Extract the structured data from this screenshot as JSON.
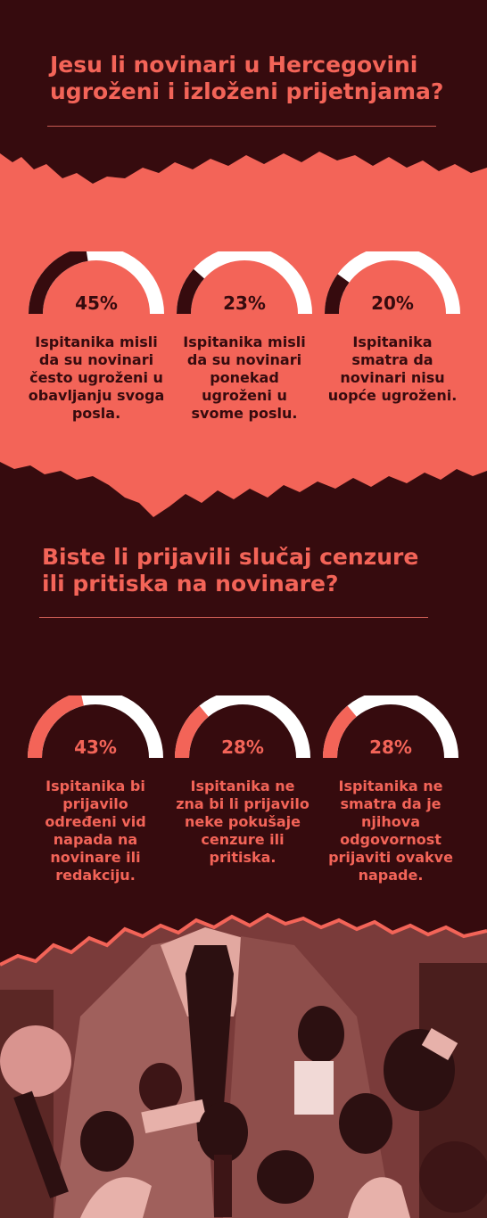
{
  "colors": {
    "background": "#360b0e",
    "accent": "#f36458",
    "ring_track": "#ffffff"
  },
  "section1": {
    "title_line1": "Jesu li novinari u Hercegovini",
    "title_line2": "ugroženi i izloženi prijetnjama?",
    "stats": [
      {
        "percent": "45%",
        "value": 45,
        "desc": [
          "Ispitanika misli",
          "da su novinari",
          "često ugroženi u",
          "obavljanju svoga",
          "posla."
        ]
      },
      {
        "percent": "23%",
        "value": 23,
        "desc": [
          "Ispitanika misli",
          "da su novinari",
          "ponekad",
          "ugroženi u",
          "svome poslu."
        ]
      },
      {
        "percent": "20%",
        "value": 20,
        "desc": [
          "Ispitanika",
          "smatra da",
          "novinari nisu",
          "uopće ugroženi."
        ]
      }
    ]
  },
  "section2": {
    "title_line1": "Biste li prijavili slučaj cenzure",
    "title_line2": "ili pritiska na novinare?",
    "stats": [
      {
        "percent": "43%",
        "value": 43,
        "desc": [
          "Ispitanika bi",
          "prijavilo",
          "određeni vid",
          "napada na",
          "novinare ili",
          "redakciju."
        ]
      },
      {
        "percent": "28%",
        "value": 28,
        "desc": [
          "Ispitanika ne",
          "zna bi li prijavilo",
          "neke pokušaje",
          "cenzure ili",
          "pritiska."
        ]
      },
      {
        "percent": "28%",
        "value": 28,
        "desc": [
          "Ispitanika ne",
          "smatra da je",
          "njihova",
          "odgovornost",
          "prijaviti ovakve",
          "napade."
        ]
      }
    ]
  },
  "chart_data": [
    {
      "type": "pie",
      "title": "Jesu li novinari u Hercegovini ugroženi i izloženi prijetnjama?",
      "categories": [
        "Ispitanika misli da su novinari često ugroženi u obavljanju svoga posla.",
        "Ispitanika misli da su novinari ponekad ugroženi u svome poslu.",
        "Ispitanika smatra da novinari nisu uopće ugroženi."
      ],
      "values": [
        45,
        23,
        20
      ]
    },
    {
      "type": "pie",
      "title": "Biste li prijavili slučaj cenzure ili pritiska na novinare?",
      "categories": [
        "Ispitanika bi prijavilo određeni vid napada na novinare ili redakciju.",
        "Ispitanika ne zna bi li prijavilo neke pokušaje cenzure ili pritiska.",
        "Ispitanika ne smatra da je njihova odgovornost prijaviti ovakve napade."
      ],
      "values": [
        43,
        28,
        28
      ]
    }
  ]
}
